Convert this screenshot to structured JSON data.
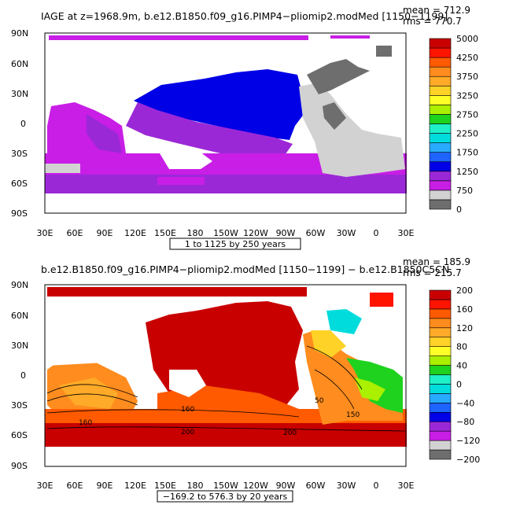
{
  "panels": [
    {
      "id": "top",
      "title": "IAGE at z=1968.9m, b.e12.B1850.f09_g16.PIMP4−pliomip2.modMed [1150−1199]",
      "stats": [
        "mean = 712.9",
        "rms = 770.7"
      ],
      "contour_info": "1 to 1125 by 250 years",
      "lat_labels": [
        "90N",
        "60N",
        "30N",
        "0",
        "30S",
        "60S",
        "90S"
      ],
      "lon_labels": [
        "30E",
        "60E",
        "90E",
        "120E",
        "150E",
        "180",
        "150W",
        "120W",
        "90W",
        "60W",
        "30W",
        "0",
        "30E"
      ],
      "colorbar": {
        "colors": [
          "#6e6e6e",
          "#d2d2d2",
          "#c81ee6",
          "#9b28d7",
          "#0000e6",
          "#1e64ff",
          "#28aaff",
          "#00dcdc",
          "#1ef0c8",
          "#1ed21e",
          "#aaf000",
          "#ffff28",
          "#ffd228",
          "#ffaa28",
          "#ff8c1e",
          "#ff5a00",
          "#ff1400",
          "#c80000"
        ],
        "labels": [
          "5000",
          "4250",
          "3750",
          "3250",
          "2750",
          "2250",
          "1750",
          "1250",
          "750",
          "0"
        ]
      }
    },
    {
      "id": "bottom",
      "title": "b.e12.B1850.f09_g16.PIMP4−pliomip2.modMed [1150−1199] − b.e12.B1850C5CN.",
      "stats": [
        "mean = 185.9",
        "rms = 215.7"
      ],
      "contour_info": "−169.2 to 576.3 by 20 years",
      "lat_labels": [
        "90N",
        "60N",
        "30N",
        "0",
        "30S",
        "60S",
        "90S"
      ],
      "lon_labels": [
        "30E",
        "60E",
        "90E",
        "120E",
        "150E",
        "180",
        "150W",
        "120W",
        "90W",
        "60W",
        "30W",
        "0",
        "30E"
      ],
      "contour_labels": [
        "160",
        "160",
        "200",
        "150",
        "200",
        "50"
      ],
      "colorbar": {
        "colors": [
          "#6e6e6e",
          "#d2d2d2",
          "#c81ee6",
          "#9b28d7",
          "#0000e6",
          "#1e64ff",
          "#28aaff",
          "#00dcdc",
          "#1ef0c8",
          "#1ed21e",
          "#aaf000",
          "#ffff28",
          "#ffd228",
          "#ffaa28",
          "#ff8c1e",
          "#ff5a00",
          "#ff1400",
          "#c80000"
        ],
        "labels": [
          "200",
          "160",
          "120",
          "80",
          "40",
          "0",
          "−40",
          "−80",
          "−120",
          "−200"
        ]
      }
    }
  ]
}
